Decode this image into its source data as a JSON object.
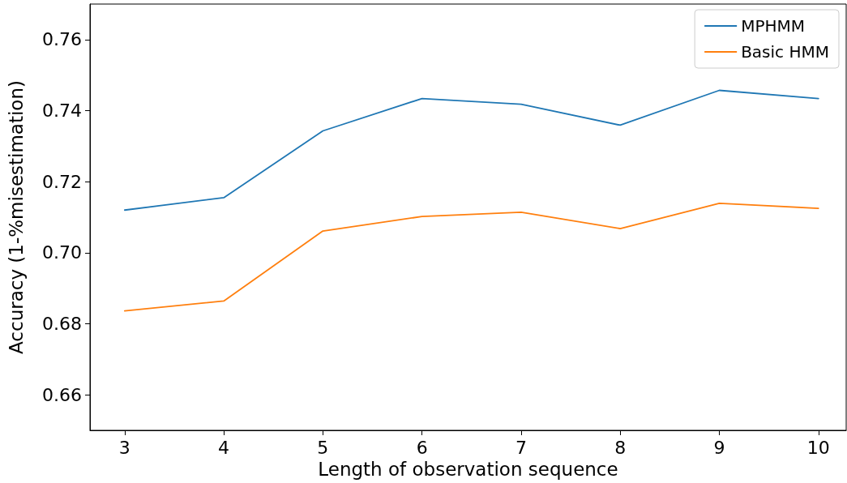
{
  "chart_data": {
    "type": "line",
    "xlabel": "Length of observation sequence",
    "ylabel": "Accuracy (1-%misestimation)",
    "x": [
      3,
      4,
      5,
      6,
      7,
      8,
      9,
      10
    ],
    "series": [
      {
        "name": "MPHMM",
        "color": "#1f77b4",
        "values": [
          0.712,
          0.7155,
          0.7343,
          0.7434,
          0.7418,
          0.7359,
          0.7457,
          0.7434
        ]
      },
      {
        "name": "Basic HMM",
        "color": "#ff7f0e",
        "values": [
          0.6836,
          0.6864,
          0.7061,
          0.7102,
          0.7114,
          0.7068,
          0.7139,
          0.7125
        ]
      }
    ],
    "xlim": [
      2.65,
      10.28
    ],
    "xticks": [
      3,
      4,
      5,
      6,
      7,
      8,
      9,
      10
    ],
    "ylim": [
      0.65,
      0.77
    ],
    "yticks": [
      0.66,
      0.68,
      {
        "value": 0.7,
        "label": "0.70"
      },
      0.72,
      0.74,
      0.76
    ],
    "grid": false,
    "legend": "top right",
    "marker": "none",
    "line_style": "solid"
  }
}
